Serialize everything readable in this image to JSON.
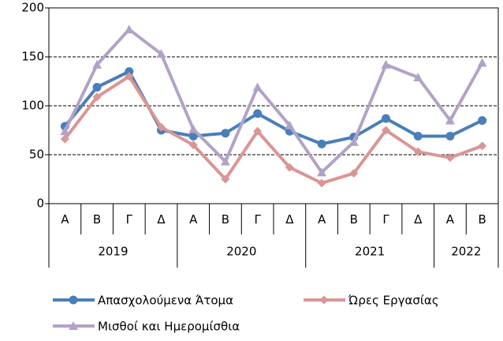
{
  "chart_data": {
    "type": "line",
    "categories": [
      "Α",
      "Β",
      "Γ",
      "Δ",
      "Α",
      "Β",
      "Γ",
      "Δ",
      "Α",
      "Β",
      "Γ",
      "Δ",
      "Α",
      "Β"
    ],
    "groups": [
      {
        "label": "2019",
        "span": 4
      },
      {
        "label": "2020",
        "span": 4
      },
      {
        "label": "2021",
        "span": 4
      },
      {
        "label": "2022",
        "span": 2
      }
    ],
    "series": [
      {
        "name": "Απασχολούμενα Άτομα",
        "color": "#4a7ebb",
        "marker": "circle",
        "values": [
          79,
          119,
          135,
          75,
          69,
          72,
          92,
          74,
          61,
          68,
          87,
          69,
          69,
          85
        ]
      },
      {
        "name": "Ώρες Εργασίας",
        "color": "#d99694",
        "marker": "diamond",
        "values": [
          66,
          109,
          130,
          78,
          60,
          25,
          74,
          37,
          21,
          31,
          75,
          53,
          47,
          59
        ]
      },
      {
        "name": "Μισθοί και Ημερομίσθια",
        "color": "#b3a2c7",
        "marker": "triangle",
        "values": [
          74,
          142,
          178,
          153,
          76,
          43,
          119,
          80,
          32,
          63,
          142,
          129,
          85,
          144
        ]
      }
    ],
    "ylim": [
      0,
      200
    ],
    "yticks": [
      0,
      50,
      100,
      150,
      200
    ],
    "grid": true,
    "legend": "bottom"
  }
}
